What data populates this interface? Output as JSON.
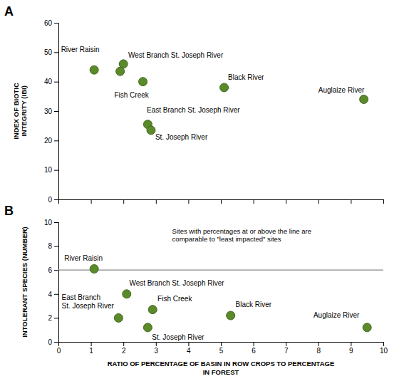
{
  "chart_data": [
    {
      "type": "scatter",
      "title": "A",
      "x": [
        1.1,
        2.0,
        1.9,
        2.6,
        2.75,
        2.85,
        5.1,
        9.4
      ],
      "values": [
        44,
        46,
        43.5,
        40,
        25.5,
        23.5,
        38,
        34
      ],
      "color": "#5a8a2a",
      "y_label": "INDEX OF BIOTIC\nINTEGRITY (IBI)",
      "xlim": [
        0,
        10
      ],
      "xticks": [
        0,
        1,
        2,
        3,
        4,
        5,
        6,
        7,
        8,
        9,
        10
      ],
      "ylim": [
        0,
        60
      ],
      "yticks": [
        0,
        10,
        20,
        30,
        40,
        50,
        60
      ],
      "tick_labels": "y",
      "grid": false,
      "annotations": [
        {
          "text": "River Raisin",
          "x": 0.08,
          "y": 49.5
        },
        {
          "text": "West Branch St. Joseph River",
          "x": 2.15,
          "y": 47.5
        },
        {
          "text": "Fish Creek",
          "x": 1.72,
          "y": 36.5
        },
        {
          "text": "East Branch St. Joseph River",
          "x": 2.72,
          "y": 29.0
        },
        {
          "text": "St. Joseph River",
          "x": 2.98,
          "y": 22.2
        },
        {
          "text": "Black River",
          "x": 5.22,
          "y": 40.0
        },
        {
          "text": "Auglaize River",
          "x": 8.0,
          "y": 35.8
        }
      ]
    },
    {
      "type": "scatter",
      "title": "B",
      "x": [
        1.1,
        2.1,
        1.85,
        2.9,
        2.75,
        5.3,
        9.5
      ],
      "values": [
        6.1,
        4.0,
        2.0,
        2.7,
        1.2,
        2.2,
        1.2
      ],
      "color": "#5a8a2a",
      "x_label": "RATIO OF PERCENTAGE OF BASIN IN ROW CROPS TO PERCENTAGE\nIN FOREST",
      "y_label": "INTOLERANT SPECIES (NUMBER)",
      "xlim": [
        0,
        10
      ],
      "xticks": [
        0,
        1,
        2,
        3,
        4,
        5,
        6,
        7,
        8,
        9,
        10
      ],
      "ylim": [
        0,
        10
      ],
      "yticks": [
        0,
        2,
        4,
        6,
        8,
        10
      ],
      "grid": false,
      "hline": 6.0,
      "note": {
        "text": "Sites with percentages at or above the line are\ncomparable to \"least impacted\" sites",
        "x": 3.5,
        "y": 9.5
      },
      "annotations": [
        {
          "text": "River Raisin",
          "x": 0.18,
          "y": 6.65
        },
        {
          "text": "West Branch St. Joseph River",
          "x": 2.18,
          "y": 4.55
        },
        {
          "text": "East Branch\nSt. Joseph River",
          "x": 0.1,
          "y": 2.65
        },
        {
          "text": "Fish Creek",
          "x": 3.05,
          "y": 3.25
        },
        {
          "text": "St. Joseph River",
          "x": 2.88,
          "y": 0.65
        },
        {
          "text": "Black River",
          "x": 5.45,
          "y": 2.75
        },
        {
          "text": "Auglaize River",
          "x": 7.85,
          "y": 1.85
        }
      ]
    }
  ]
}
